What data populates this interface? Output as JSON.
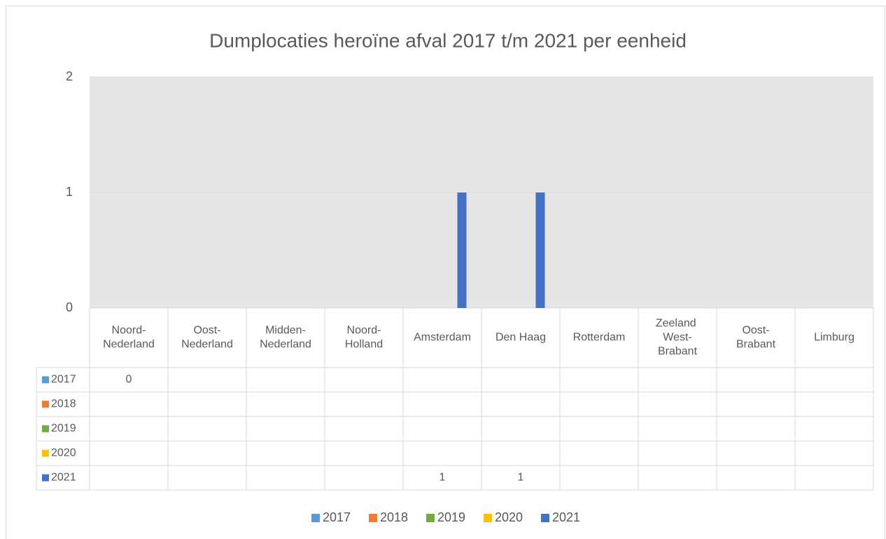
{
  "chart_data": {
    "type": "bar",
    "title": "Dumplocaties heroïne afval 2017 t/m 2021 per eenheid",
    "categories": [
      "Noord-Nederland",
      "Oost-Nederland",
      "Midden-Nederland",
      "Noord-Holland",
      "Amsterdam",
      "Den Haag",
      "Rotterdam",
      "Zeeland West-Brabant",
      "Oost-Brabant",
      "Limburg"
    ],
    "series": [
      {
        "name": "2017",
        "color": "#5b9bd5",
        "values": [
          0,
          null,
          null,
          null,
          null,
          null,
          null,
          null,
          null,
          null
        ]
      },
      {
        "name": "2018",
        "color": "#ed7d31",
        "values": [
          null,
          null,
          null,
          null,
          null,
          null,
          null,
          null,
          null,
          null
        ]
      },
      {
        "name": "2019",
        "color": "#70ad47",
        "values": [
          null,
          null,
          null,
          null,
          null,
          null,
          null,
          null,
          null,
          null
        ]
      },
      {
        "name": "2020",
        "color": "#ffc000",
        "values": [
          null,
          null,
          null,
          null,
          null,
          null,
          null,
          null,
          null,
          null
        ]
      },
      {
        "name": "2021",
        "color": "#4472c4",
        "values": [
          null,
          null,
          null,
          null,
          1,
          1,
          null,
          null,
          null,
          null
        ]
      }
    ],
    "ylim": [
      0,
      2
    ],
    "yticks": [
      0,
      1,
      2
    ],
    "grid": true,
    "legend": "bottom",
    "data_table": true
  }
}
